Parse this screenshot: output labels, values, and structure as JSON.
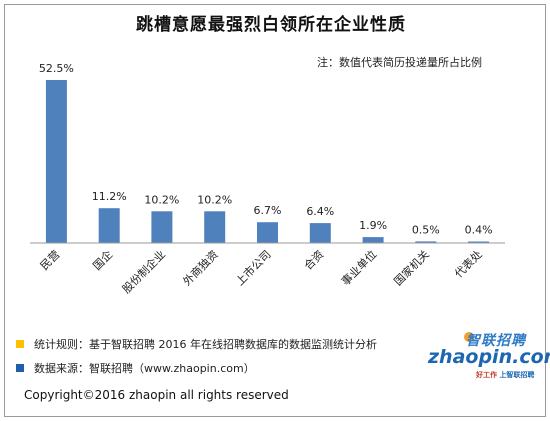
{
  "title": "跳槽意愿最强烈白领所在企业性质",
  "note": "注：数值代表简历投递量所占比例",
  "chart_data": {
    "type": "bar",
    "categories": [
      "民营",
      "国企",
      "股份制企业",
      "外商独资",
      "上市公司",
      "合资",
      "事业单位",
      "国家机关",
      "代表处"
    ],
    "values": [
      52.5,
      11.2,
      10.2,
      10.2,
      6.7,
      6.4,
      1.9,
      0.5,
      0.4
    ],
    "labels": [
      "52.5%",
      "11.2%",
      "10.2%",
      "10.2%",
      "6.7%",
      "6.4%",
      "1.9%",
      "0.5%",
      "0.4%"
    ],
    "bar_color": "#4f81bd",
    "grid": false
  },
  "legend": [
    {
      "text": "统计规则：基于智联招聘 2016 年在线招聘数据库的数据监测统计分析",
      "color": "#ffc000"
    },
    {
      "text": "数据来源：智联招聘（www.zhaopin.com）",
      "color": "#1f5fa8"
    }
  ],
  "logo": {
    "cn": "智联招聘",
    "en": "zhaopin.com",
    "slogan_a": "好工作",
    "slogan_b": "上智联招聘"
  },
  "copyright": "Copyright©2016 zhaopin all rights reserved"
}
